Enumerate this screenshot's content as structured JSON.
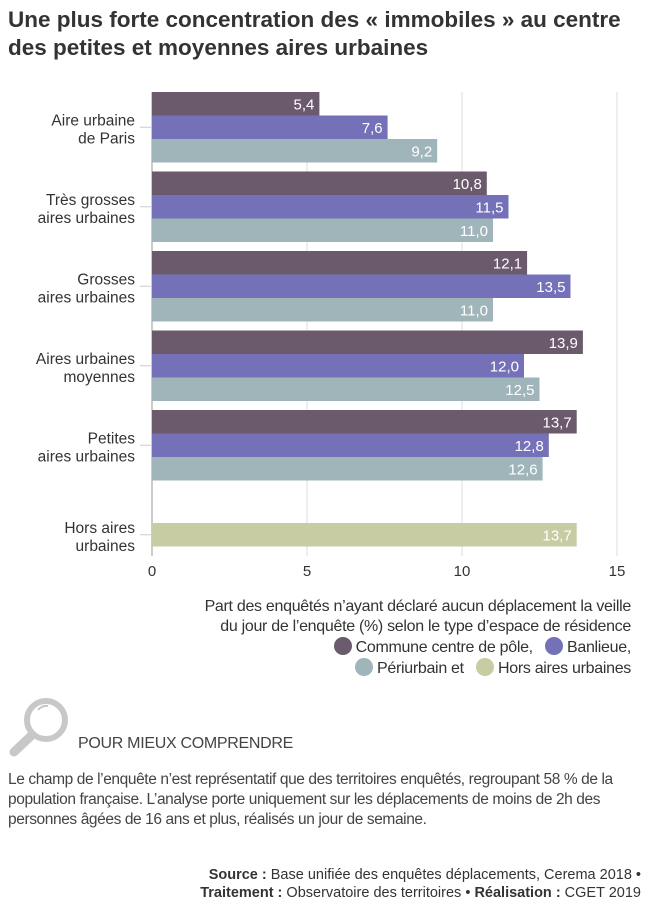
{
  "title": "Une plus forte concentration des « immobiles » au centre des petites et moyennes aires urbaines",
  "chart_data": {
    "type": "bar",
    "orientation": "horizontal",
    "categories": [
      [
        "Aire urbaine",
        "de Paris"
      ],
      [
        "Très grosses",
        "aires urbaines"
      ],
      [
        "Grosses",
        "aires urbaines"
      ],
      [
        "Aires urbaines",
        "moyennes"
      ],
      [
        "Petites",
        "aires urbaines"
      ],
      [
        "Hors aires",
        "urbaines"
      ]
    ],
    "series": [
      {
        "name": "Commune centre de pôle",
        "color": "#6a5a6b",
        "values": [
          5.4,
          10.8,
          12.1,
          13.9,
          13.7,
          null
        ],
        "labels": [
          "5,4",
          "10,8",
          "12,1",
          "13,9",
          "13,7",
          null
        ]
      },
      {
        "name": "Banlieue",
        "color": "#7471b8",
        "values": [
          7.6,
          11.5,
          13.5,
          12.0,
          12.8,
          null
        ],
        "labels": [
          "7,6",
          "11,5",
          "13,5",
          "12,0",
          "12,8",
          null
        ]
      },
      {
        "name": "Périurbain",
        "color": "#9fb5b9",
        "values": [
          9.2,
          11.0,
          11.0,
          12.5,
          12.6,
          null
        ],
        "labels": [
          "9,2",
          "11,0",
          "11,0",
          "12,5",
          "12,6",
          null
        ]
      },
      {
        "name": "Hors aires urbaines",
        "color": "#c8cca2",
        "values": [
          null,
          null,
          null,
          null,
          null,
          13.7
        ],
        "labels": [
          null,
          null,
          null,
          null,
          null,
          "13,7"
        ]
      }
    ],
    "xlim": [
      0,
      15
    ],
    "xticks": [
      0,
      5,
      10,
      15
    ],
    "xtick_labels": [
      "0",
      "5",
      "10",
      "15"
    ],
    "grid": true,
    "legend_placement": "bottom-right"
  },
  "legend": {
    "caption_line1": "Part des enquêtés n’ayant déclaré aucun déplacement la veille",
    "caption_line2": "du jour de l’enquête (%) selon le type d’espace de résidence",
    "item1": "Commune centre de pôle,",
    "item2": "Banlieue,",
    "item3": "Périurbain et",
    "item4": "Hors aires urbaines"
  },
  "help": {
    "title": "POUR MIEUX COMPRENDRE",
    "text": "Le champ de l’enquête n’est représentatif que des territoires enquêtés, regroupant 58 % de la population française. L’analyse porte uniquement sur les déplacements de moins de 2h des personnes âgées de 16 ans et plus, réalisés un jour de semaine."
  },
  "source": {
    "source_label": "Source :",
    "source_text": " Base unifiée des enquêtes déplacements, Cerema 2018 •",
    "treatment_label": "Traitement :",
    "treatment_text": " Observatoire des territoires • ",
    "realisation_label": "Réalisation :",
    "realisation_text": " CGET 2019"
  }
}
